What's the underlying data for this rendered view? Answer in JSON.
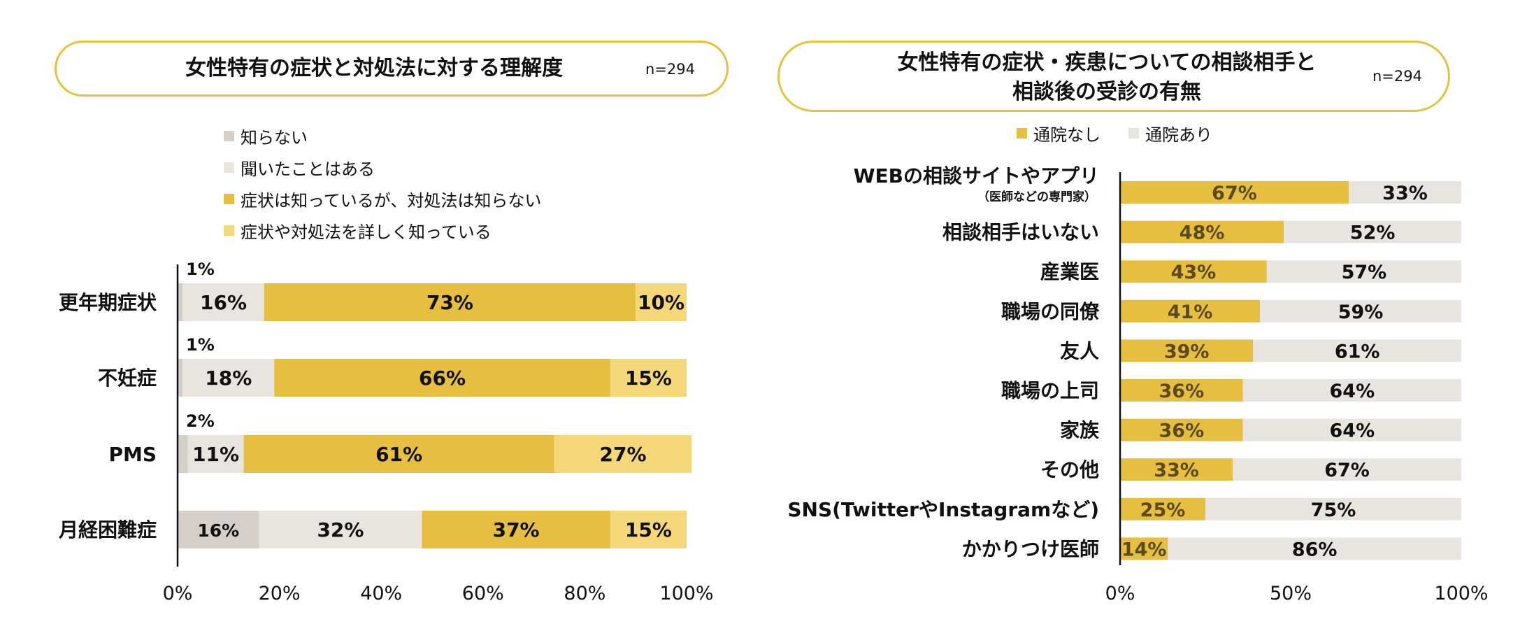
{
  "colors": {
    "dont_know": "#d4cfca",
    "heard_of": "#e8e5e1",
    "symptoms_only": "#e6bf40",
    "know_both": "#f4d778",
    "no_visit": "#e6bf40",
    "visited": "#e8e5e1",
    "accent": "#e6c23c"
  },
  "left": {
    "title": "女性特有の症状と対処法に対する理解度",
    "n": "n=294",
    "legend": [
      "知らない",
      "聞いたことはある",
      "症状は知っているが、対処法は知らない",
      "症状や対処法を詳しく知っている"
    ]
  },
  "right": {
    "title_line1": "女性特有の症状・疾患についての相談相手と",
    "title_line2": "相談後の受診の有無",
    "n": "n=294",
    "legend": [
      "通院なし",
      "通院あり"
    ]
  },
  "chart_data": [
    {
      "type": "bar",
      "orientation": "horizontal",
      "stacked": true,
      "title": "女性特有の症状と対処法に対する理解度",
      "categories": [
        "更年期症状",
        "不妊症",
        "PMS",
        "月経困難症"
      ],
      "series": [
        {
          "name": "知らない",
          "values": [
            1,
            1,
            2,
            16
          ],
          "labels": [
            "1%",
            "1%",
            "2%",
            "16%"
          ]
        },
        {
          "name": "聞いたことはある",
          "values": [
            16,
            18,
            11,
            32
          ],
          "labels": [
            "16%",
            "18%",
            "11%",
            "32%"
          ]
        },
        {
          "name": "症状は知っているが、対処法は知らない",
          "values": [
            73,
            66,
            61,
            37
          ],
          "labels": [
            "73%",
            "66%",
            "61%",
            "37%"
          ]
        },
        {
          "name": "症状や対処法を詳しく知っている",
          "values": [
            10,
            15,
            27,
            15
          ],
          "labels": [
            "10%",
            "15%",
            "27%",
            "15%"
          ]
        }
      ],
      "xlim": [
        0,
        100
      ],
      "xticks": [
        "0%",
        "20%",
        "40%",
        "60%",
        "80%",
        "100%"
      ],
      "legend_position": "top"
    },
    {
      "type": "bar",
      "orientation": "horizontal",
      "stacked": true,
      "title": "女性特有の症状・疾患についての相談相手と相談後の受診の有無",
      "categories": [
        "WEBの相談サイトやアプリ",
        "相談相手はいない",
        "産業医",
        "職場の同僚",
        "友人",
        "職場の上司",
        "家族",
        "その他",
        "SNS(TwitterやInstagramなど)",
        "かかりつけ医師"
      ],
      "category_sublabels": [
        "（医師などの専門家）",
        "",
        "",
        "",
        "",
        "",
        "",
        "",
        "",
        ""
      ],
      "series": [
        {
          "name": "通院なし",
          "values": [
            67,
            48,
            43,
            41,
            39,
            36,
            36,
            33,
            25,
            14
          ],
          "labels": [
            "67%",
            "48%",
            "43%",
            "41%",
            "39%",
            "36%",
            "36%",
            "33%",
            "25%",
            "14%"
          ]
        },
        {
          "name": "通院あり",
          "values": [
            33,
            52,
            57,
            59,
            61,
            64,
            64,
            67,
            75,
            86
          ],
          "labels": [
            "33%",
            "52%",
            "57%",
            "59%",
            "61%",
            "64%",
            "64%",
            "67%",
            "75%",
            "86%"
          ]
        }
      ],
      "xlim": [
        0,
        100
      ],
      "xticks": [
        "0%",
        "50%",
        "100%"
      ],
      "legend_position": "top"
    }
  ]
}
